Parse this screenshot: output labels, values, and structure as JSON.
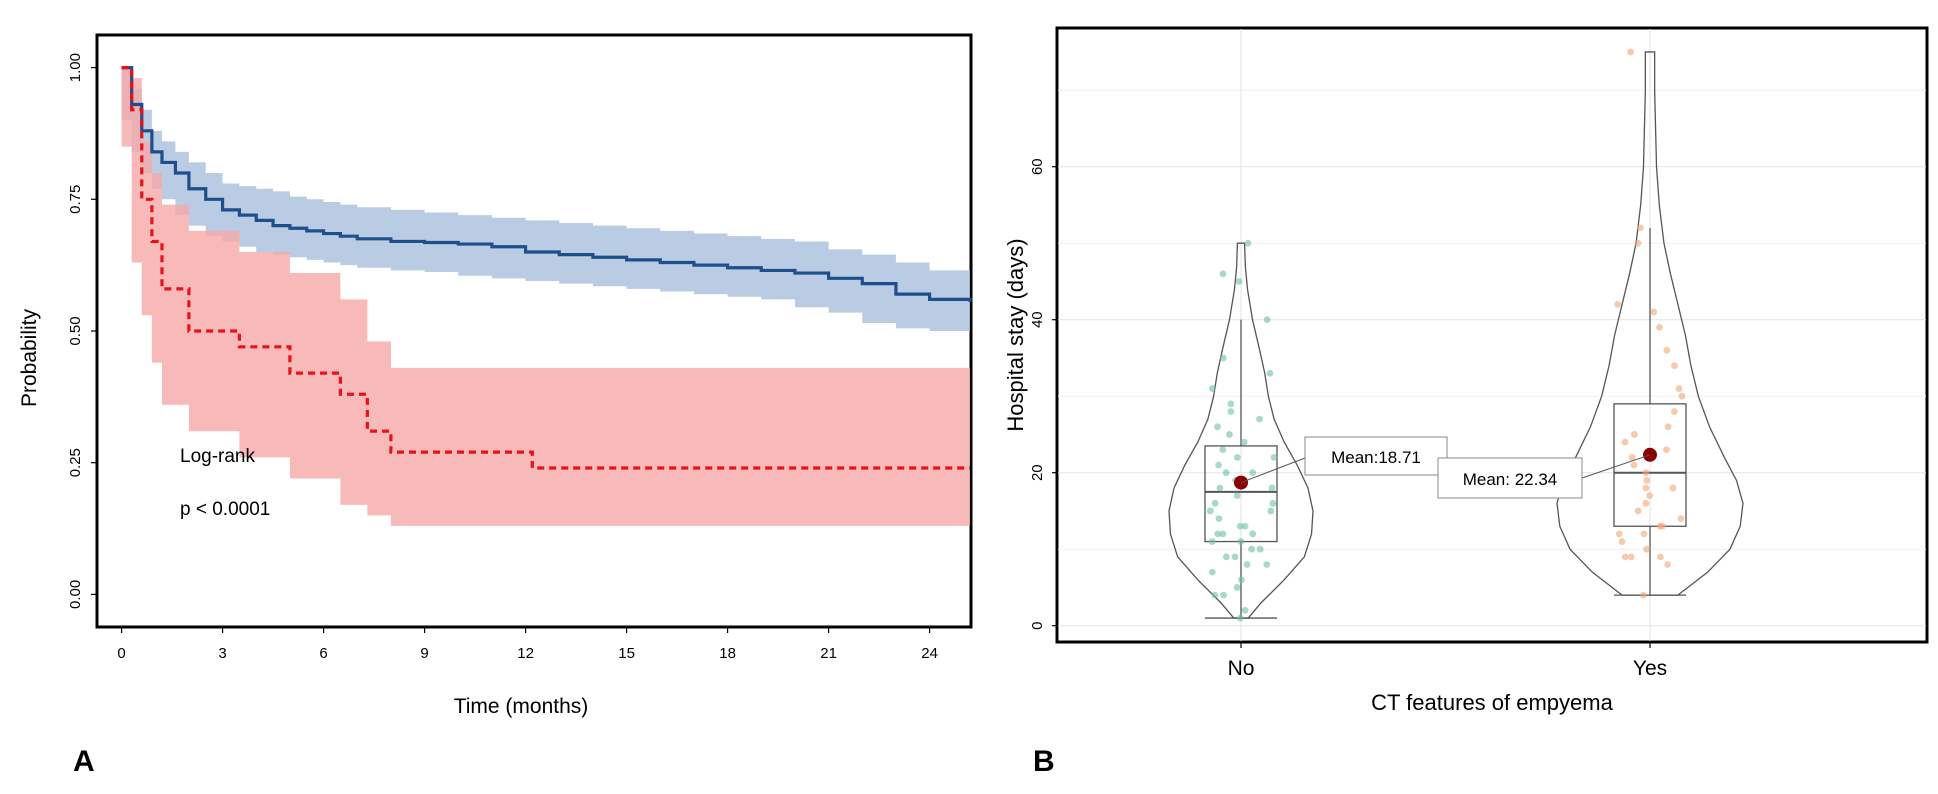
{
  "panels": {
    "a_label": "A",
    "b_label": "B"
  },
  "chart_data": [
    {
      "type": "line",
      "kind": "kaplan-meier",
      "xlabel": "Time (months)",
      "ylabel": "Probability",
      "xlim": [
        -0.7,
        25.2
      ],
      "ylim": [
        -0.06,
        1.06
      ],
      "xticks": [
        0,
        3,
        6,
        9,
        12,
        15,
        18,
        21,
        24
      ],
      "yticks": [
        0.0,
        0.25,
        0.5,
        0.75,
        1.0
      ],
      "ytick_labels": [
        "0.00",
        "0.25",
        "0.50",
        "0.75",
        "1.00"
      ],
      "annotations": {
        "test": "Log-rank",
        "pvalue": "p < 0.0001"
      },
      "colors": {
        "blue_line": "#1f4e8c",
        "blue_band": "#a9c1dd",
        "red_line": "#e8121a",
        "red_band": "#f7aaaa"
      },
      "series": [
        {
          "name": "blue",
          "style": "solid",
          "x": [
            0,
            0.3,
            0.6,
            0.9,
            1.2,
            1.6,
            2.0,
            2.5,
            3.0,
            3.5,
            4.0,
            4.5,
            5.0,
            5.5,
            6.0,
            6.5,
            7.0,
            8.0,
            9.0,
            10.0,
            11.0,
            12.0,
            13.0,
            14.0,
            15.0,
            16.0,
            17.0,
            18.0,
            19.0,
            20.0,
            21.0,
            22.0,
            23.0,
            24.0,
            25.2
          ],
          "y": [
            1.0,
            0.93,
            0.88,
            0.84,
            0.82,
            0.8,
            0.77,
            0.75,
            0.73,
            0.72,
            0.71,
            0.7,
            0.695,
            0.69,
            0.685,
            0.68,
            0.675,
            0.67,
            0.668,
            0.665,
            0.66,
            0.65,
            0.645,
            0.64,
            0.635,
            0.63,
            0.625,
            0.62,
            0.615,
            0.61,
            0.6,
            0.59,
            0.57,
            0.56,
            0.555
          ],
          "lower": [
            1.0,
            0.9,
            0.84,
            0.8,
            0.77,
            0.75,
            0.72,
            0.7,
            0.68,
            0.67,
            0.66,
            0.65,
            0.645,
            0.64,
            0.635,
            0.63,
            0.625,
            0.62,
            0.615,
            0.612,
            0.605,
            0.6,
            0.595,
            0.59,
            0.585,
            0.58,
            0.575,
            0.57,
            0.565,
            0.56,
            0.545,
            0.535,
            0.515,
            0.505,
            0.5
          ],
          "upper": [
            1.0,
            0.96,
            0.92,
            0.88,
            0.86,
            0.84,
            0.82,
            0.8,
            0.78,
            0.775,
            0.77,
            0.765,
            0.755,
            0.75,
            0.745,
            0.74,
            0.735,
            0.73,
            0.725,
            0.72,
            0.715,
            0.71,
            0.705,
            0.7,
            0.695,
            0.69,
            0.685,
            0.68,
            0.675,
            0.67,
            0.655,
            0.645,
            0.63,
            0.615,
            0.61
          ]
        },
        {
          "name": "red",
          "style": "dashed",
          "x": [
            0,
            0.3,
            0.6,
            0.9,
            1.2,
            2.0,
            3.5,
            5.0,
            6.5,
            7.3,
            8.0,
            12.2,
            25.2
          ],
          "y": [
            1.0,
            0.92,
            0.75,
            0.67,
            0.58,
            0.5,
            0.47,
            0.42,
            0.38,
            0.31,
            0.27,
            0.24,
            0.24
          ],
          "lower": [
            1.0,
            0.85,
            0.63,
            0.53,
            0.44,
            0.36,
            0.31,
            0.26,
            0.22,
            0.17,
            0.15,
            0.13,
            0.13
          ],
          "upper": [
            1.0,
            0.98,
            0.86,
            0.8,
            0.74,
            0.69,
            0.65,
            0.61,
            0.56,
            0.48,
            0.43,
            0.43,
            0.43
          ]
        }
      ]
    },
    {
      "type": "violin",
      "xlabel": "CT features of empyema",
      "ylabel": "Hospital stay (days)",
      "categories": [
        "No",
        "Yes"
      ],
      "ylim": [
        -2,
        78
      ],
      "yticks": [
        0,
        20,
        40,
        60
      ],
      "colors": {
        "No": "#6fc0a3",
        "Yes": "#f1a576",
        "mean_dot": "#8b0000"
      },
      "groups": [
        {
          "category": "No",
          "mean_label": "Mean:18.71",
          "mean": 18.71,
          "box": {
            "q1": 11,
            "median": 17.5,
            "q3": 23.5,
            "whisker_low": 1,
            "whisker_high": 40
          },
          "violin_max": 50,
          "density": [
            [
              1,
              0.1
            ],
            [
              3,
              0.28
            ],
            [
              6,
              0.6
            ],
            [
              9,
              0.88
            ],
            [
              12,
              0.98
            ],
            [
              15,
              1.0
            ],
            [
              18,
              0.93
            ],
            [
              21,
              0.78
            ],
            [
              24,
              0.6
            ],
            [
              27,
              0.46
            ],
            [
              30,
              0.38
            ],
            [
              33,
              0.33
            ],
            [
              36,
              0.26
            ],
            [
              40,
              0.16
            ],
            [
              44,
              0.09
            ],
            [
              47,
              0.06
            ],
            [
              50,
              0.05
            ]
          ],
          "points": [
            1,
            2,
            4,
            4,
            5,
            6,
            7,
            8,
            8,
            9,
            9,
            10,
            10,
            11,
            11,
            12,
            12,
            12,
            13,
            13,
            14,
            15,
            15,
            16,
            16,
            17,
            18,
            18,
            19,
            19,
            20,
            20,
            21,
            22,
            22,
            23,
            24,
            25,
            26,
            27,
            28,
            29,
            31,
            33,
            35,
            40,
            45,
            46,
            50
          ]
        },
        {
          "category": "Yes",
          "mean_label": "Mean: 22.34",
          "mean": 22.34,
          "box": {
            "q1": 13,
            "median": 20,
            "q3": 29,
            "whisker_low": 4,
            "whisker_high": 52
          },
          "violin_max": 75,
          "density": [
            [
              4,
              0.3
            ],
            [
              7,
              0.62
            ],
            [
              10,
              0.86
            ],
            [
              13,
              0.97
            ],
            [
              16,
              1.0
            ],
            [
              19,
              0.93
            ],
            [
              22,
              0.8
            ],
            [
              26,
              0.64
            ],
            [
              30,
              0.52
            ],
            [
              34,
              0.44
            ],
            [
              38,
              0.38
            ],
            [
              42,
              0.3
            ],
            [
              46,
              0.22
            ],
            [
              50,
              0.15
            ],
            [
              55,
              0.1
            ],
            [
              60,
              0.07
            ],
            [
              65,
              0.06
            ],
            [
              70,
              0.05
            ],
            [
              75,
              0.05
            ]
          ],
          "points": [
            4,
            8,
            9,
            9,
            9,
            10,
            11,
            12,
            12,
            13,
            13,
            14,
            15,
            16,
            17,
            18,
            18,
            19,
            20,
            21,
            22,
            23,
            24,
            25,
            26,
            28,
            30,
            31,
            34,
            36,
            39,
            41,
            42,
            50,
            52,
            75
          ]
        }
      ]
    }
  ]
}
